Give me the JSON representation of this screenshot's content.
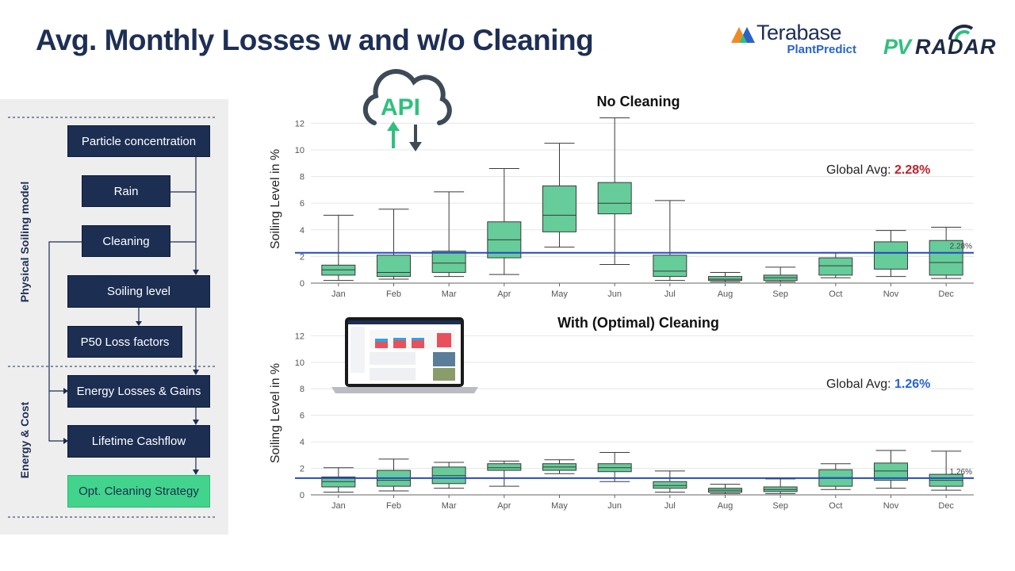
{
  "slide": {
    "title": "Avg. Monthly Losses w and w/o Cleaning"
  },
  "logos": {
    "terabase_name": "Terabase",
    "terabase_sub": "PlantPredict",
    "pvradar_pv": "PV",
    "pvradar_radar": "RADAR"
  },
  "api_badge": "API",
  "flow": {
    "section_physical": "Physical Soiling model",
    "section_energy": "Energy & Cost",
    "boxes": {
      "particle": "Particle concentration",
      "rain": "Rain",
      "cleaning": "Cleaning",
      "soiling": "Soiling level",
      "p50": "P50 Loss factors",
      "energy": "Energy Losses & Gains",
      "cashflow": "Lifetime Cashflow",
      "strategy": "Opt. Cleaning Strategy"
    }
  },
  "colors": {
    "box_fill": "#66cc99",
    "box_stroke": "#3a3a3a",
    "avg_line": "#2748c4",
    "navy": "#1c2e52",
    "accent_green": "#42d48c"
  },
  "chart_data": [
    {
      "type": "box",
      "title": "No Cleaning",
      "ylabel": "Soiling Level in %",
      "ylim": [
        0,
        12.5
      ],
      "yticks": [
        "0",
        "2",
        "4",
        "6",
        "8",
        "10",
        "12"
      ],
      "categories": [
        "Jan",
        "Feb",
        "Mar",
        "Apr",
        "May",
        "Jun",
        "Jul",
        "Aug",
        "Sep",
        "Oct",
        "Nov",
        "Dec"
      ],
      "boxes": [
        {
          "min": 0.2,
          "q1": 0.6,
          "median": 1.0,
          "q3": 1.35,
          "max": 5.1
        },
        {
          "min": 0.3,
          "q1": 0.5,
          "median": 0.8,
          "q3": 2.1,
          "max": 5.55
        },
        {
          "min": 0.5,
          "q1": 0.8,
          "median": 1.5,
          "q3": 2.4,
          "max": 6.85
        },
        {
          "min": 0.65,
          "q1": 1.9,
          "median": 3.25,
          "q3": 4.6,
          "max": 8.6
        },
        {
          "min": 2.7,
          "q1": 3.85,
          "median": 5.1,
          "q3": 7.3,
          "max": 10.5
        },
        {
          "min": 1.4,
          "q1": 5.2,
          "median": 6.0,
          "q3": 7.55,
          "max": 12.4
        },
        {
          "min": 0.2,
          "q1": 0.5,
          "median": 0.9,
          "q3": 2.1,
          "max": 6.2
        },
        {
          "min": 0.1,
          "q1": 0.2,
          "median": 0.3,
          "q3": 0.5,
          "max": 0.8
        },
        {
          "min": 0.1,
          "q1": 0.2,
          "median": 0.4,
          "q3": 0.6,
          "max": 1.2
        },
        {
          "min": 0.4,
          "q1": 0.6,
          "median": 1.3,
          "q3": 1.9,
          "max": 2.3
        },
        {
          "min": 0.5,
          "q1": 1.05,
          "median": 2.25,
          "q3": 3.1,
          "max": 3.95
        },
        {
          "min": 0.35,
          "q1": 0.6,
          "median": 1.55,
          "q3": 3.2,
          "max": 4.2
        }
      ],
      "global_avg": 2.28,
      "global_avg_label": "2.28%",
      "avg_note_prefix": "Global Avg: ",
      "avg_note_value": "2.28%"
    },
    {
      "type": "box",
      "title": "With (Optimal) Cleaning",
      "ylabel": "Soiling Level in %",
      "ylim": [
        0,
        12.5
      ],
      "yticks": [
        "0",
        "2",
        "4",
        "6",
        "8",
        "10",
        "12"
      ],
      "categories": [
        "Jan",
        "Feb",
        "Mar",
        "Apr",
        "May",
        "Jun",
        "Jul",
        "Aug",
        "Sep",
        "Oct",
        "Nov",
        "Dec"
      ],
      "boxes": [
        {
          "min": 0.2,
          "q1": 0.6,
          "median": 1.0,
          "q3": 1.35,
          "max": 2.05
        },
        {
          "min": 0.3,
          "q1": 0.65,
          "median": 1.1,
          "q3": 1.85,
          "max": 2.7
        },
        {
          "min": 0.5,
          "q1": 0.85,
          "median": 1.45,
          "q3": 2.1,
          "max": 2.45
        },
        {
          "min": 0.65,
          "q1": 1.85,
          "median": 2.05,
          "q3": 2.35,
          "max": 2.55
        },
        {
          "min": 1.6,
          "q1": 1.85,
          "median": 2.1,
          "q3": 2.35,
          "max": 2.65
        },
        {
          "min": 1.0,
          "q1": 1.75,
          "median": 2.05,
          "q3": 2.35,
          "max": 3.2
        },
        {
          "min": 0.2,
          "q1": 0.5,
          "median": 0.7,
          "q3": 1.0,
          "max": 1.8
        },
        {
          "min": 0.1,
          "q1": 0.2,
          "median": 0.35,
          "q3": 0.5,
          "max": 0.8
        },
        {
          "min": 0.1,
          "q1": 0.25,
          "median": 0.4,
          "q3": 0.6,
          "max": 1.2
        },
        {
          "min": 0.4,
          "q1": 0.65,
          "median": 1.3,
          "q3": 1.9,
          "max": 2.35
        },
        {
          "min": 0.5,
          "q1": 1.1,
          "median": 1.8,
          "q3": 2.4,
          "max": 3.35
        },
        {
          "min": 0.35,
          "q1": 0.65,
          "median": 1.1,
          "q3": 1.55,
          "max": 3.3
        }
      ],
      "global_avg": 1.26,
      "global_avg_label": "1.26%",
      "avg_note_prefix": "Global Avg: ",
      "avg_note_value": "1.26%"
    }
  ]
}
